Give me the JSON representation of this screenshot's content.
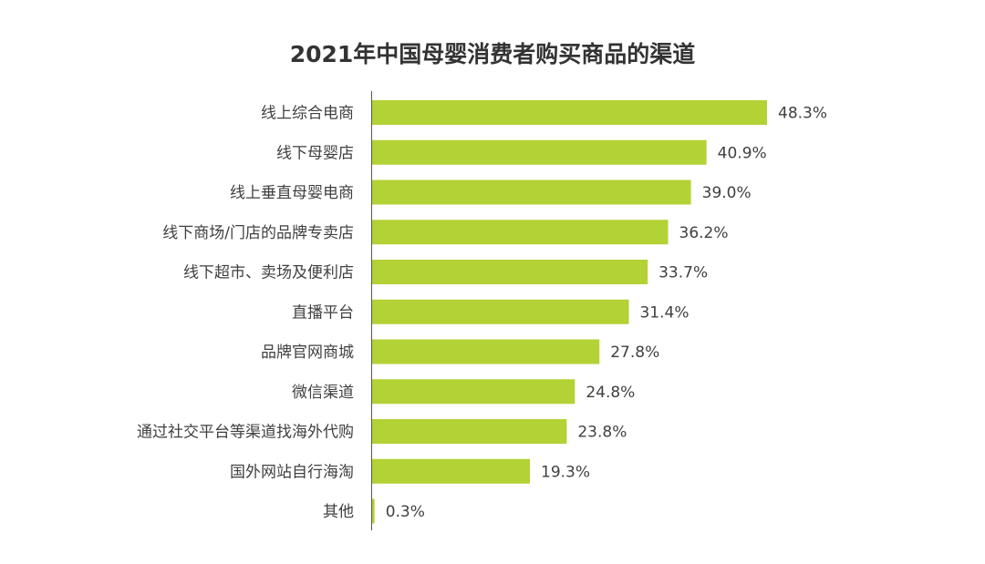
{
  "chart_data": {
    "type": "bar",
    "orientation": "horizontal",
    "title": "2021年中国母婴消费者购买商品的渠道",
    "categories": [
      "线上综合电商",
      "线下母婴店",
      "线上垂直母婴电商",
      "线下商场/门店的品牌专卖店",
      "线下超市、卖场及便利店",
      "直播平台",
      "品牌官网商城",
      "微信渠道",
      "通过社交平台等渠道找海外代购",
      "国外网站自行海淘",
      "其他"
    ],
    "values": [
      48.3,
      40.9,
      39.0,
      36.2,
      33.7,
      31.4,
      27.8,
      24.8,
      23.8,
      19.3,
      0.3
    ],
    "value_suffix": "%",
    "xlim": [
      0,
      48.3
    ],
    "grid": false,
    "bar_color": "#b2d235"
  }
}
